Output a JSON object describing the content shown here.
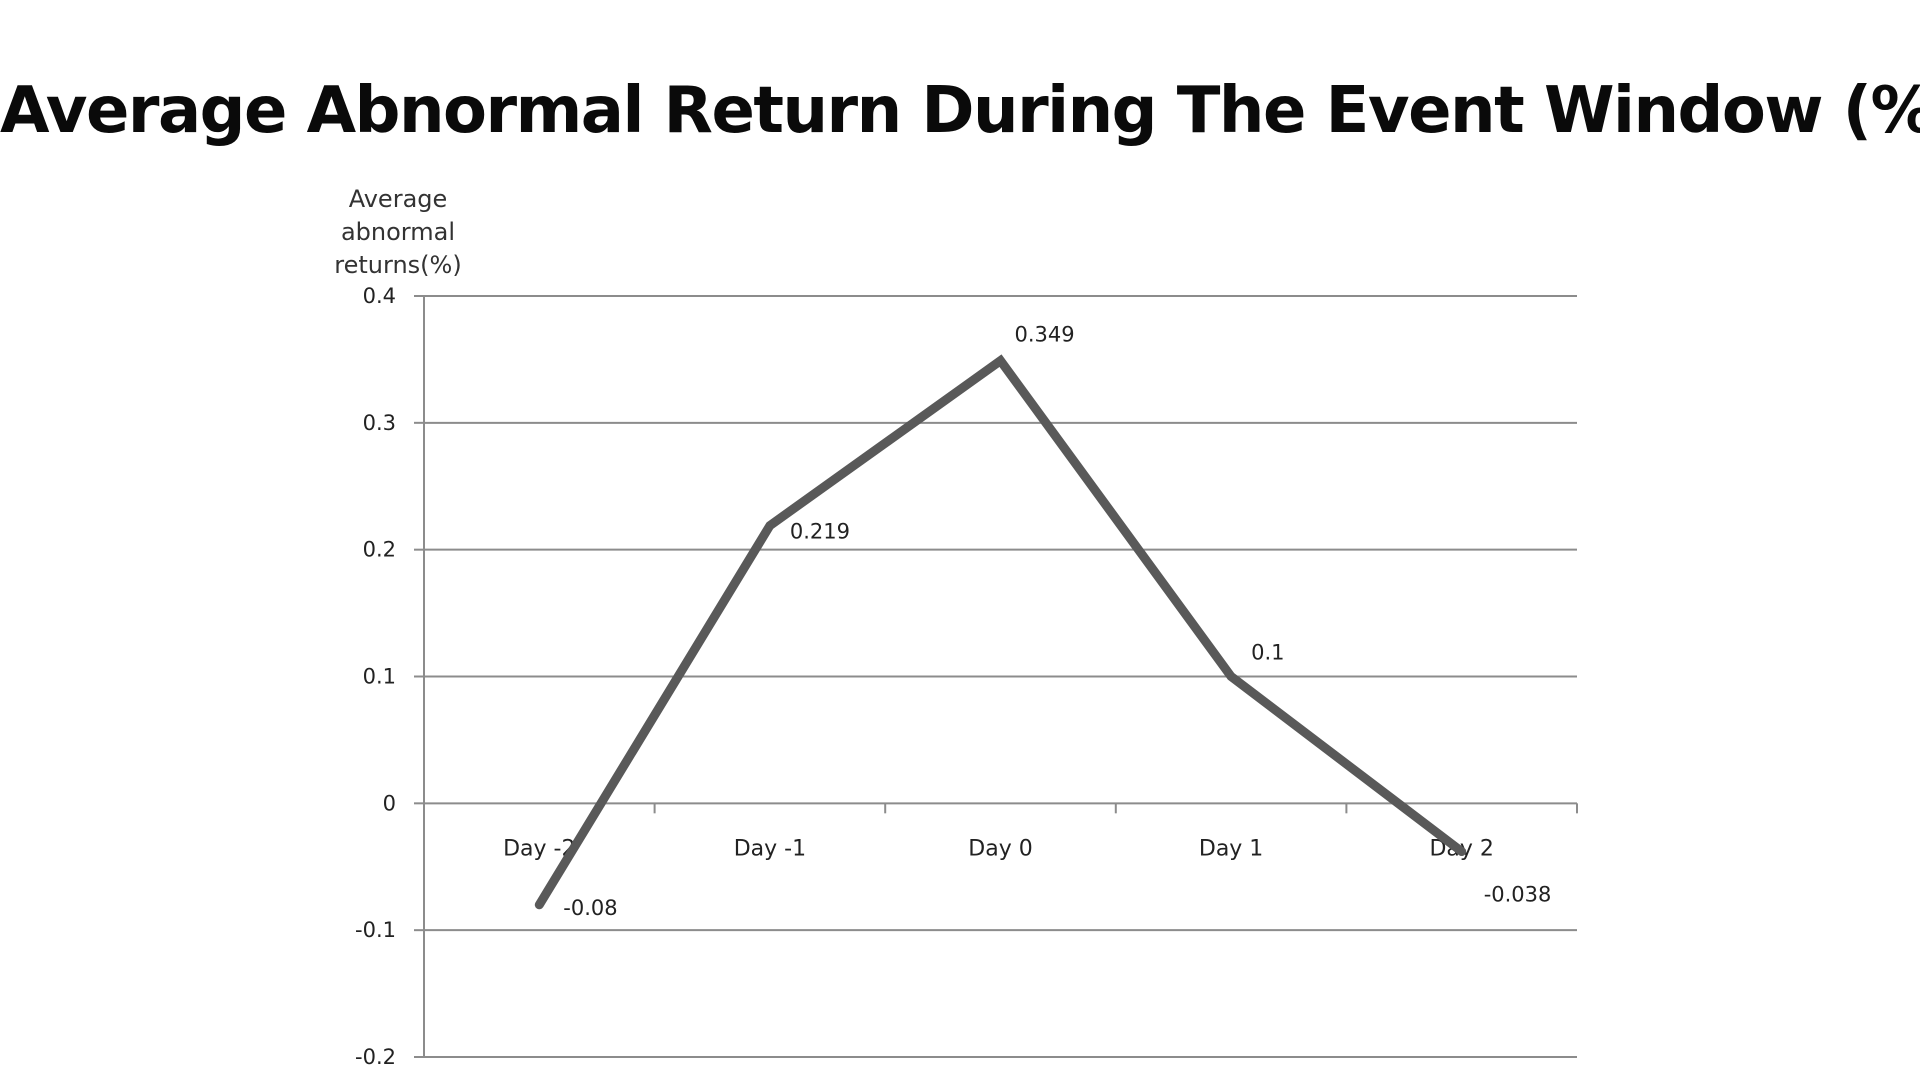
{
  "title": "Average Abnormal Return During The Event Window (%)",
  "y_axis": {
    "label_lines": [
      "Average",
      "abnormal",
      "returns(%)"
    ]
  },
  "colors": {
    "line": "#595959",
    "axis": "#8c8c8c",
    "grid": "#8c8c8c"
  },
  "chart_data": {
    "type": "line",
    "title": "Average Abnormal Return During The Event Window (%)",
    "xlabel": "",
    "ylabel": "Average abnormal returns(%)",
    "categories": [
      "Day -2",
      "Day -1",
      "Day 0",
      "Day 1",
      "Day 2"
    ],
    "series": [
      {
        "name": "Average abnormal returns(%)",
        "values": [
          -0.08,
          0.219,
          0.349,
          0.1,
          -0.038
        ]
      }
    ],
    "data_labels": [
      "-0.08",
      "0.219",
      "0.349",
      "0.1",
      "-0.038"
    ],
    "ylim": [
      -0.2,
      0.4
    ],
    "yticks": [
      0.4,
      0.3,
      0.2,
      0.1,
      0,
      -0.1,
      -0.2
    ],
    "ytick_labels": [
      "0.4",
      "0.3",
      "0.2",
      "0.1",
      "0",
      "-0.1",
      "-0.2"
    ],
    "grid": true,
    "legend": "none"
  }
}
